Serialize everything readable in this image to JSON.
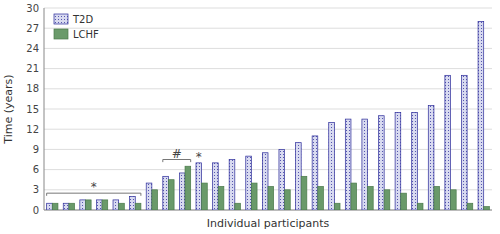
{
  "chart_data": {
    "type": "bar",
    "xlabel": "Individual participants",
    "ylabel": "Time (years)",
    "categories": [
      null,
      null,
      null,
      null,
      null,
      null,
      null,
      null,
      null,
      null,
      null,
      null,
      null,
      null,
      null,
      null,
      null,
      null,
      null,
      null,
      null,
      null,
      null,
      null,
      null,
      null,
      null
    ],
    "series": [
      {
        "name": "T2D",
        "color": "#d8daf0",
        "values": [
          1,
          1,
          1.5,
          1.5,
          1.5,
          2,
          4,
          5,
          5.5,
          7,
          7,
          7.5,
          8,
          8.5,
          9,
          10,
          11,
          13,
          13.5,
          13.5,
          14,
          14.5,
          14.5,
          15.5,
          20,
          20,
          28
        ]
      },
      {
        "name": "LCHF",
        "color": "#6a9a6a",
        "values": [
          1,
          1,
          1.5,
          1.5,
          1,
          1,
          3,
          4.5,
          6.5,
          4,
          3.5,
          1,
          4,
          3.5,
          3,
          5,
          3.5,
          1,
          4,
          3.5,
          3,
          2.5,
          1,
          3.5,
          3,
          1,
          0.5
        ]
      }
    ],
    "annotations": [
      {
        "text": "*",
        "start": 0,
        "end": 5,
        "y": 2.5
      },
      {
        "text": "#",
        "start": 7,
        "end": 8,
        "y": 7.5
      },
      {
        "text": "*",
        "index": 9
      }
    ],
    "ylim": [
      0,
      30
    ],
    "yticks": [
      0,
      3,
      6,
      9,
      12,
      15,
      18,
      21,
      24,
      27,
      30
    ],
    "grid": true,
    "legend": "upper left",
    "tick_labels": "y"
  }
}
